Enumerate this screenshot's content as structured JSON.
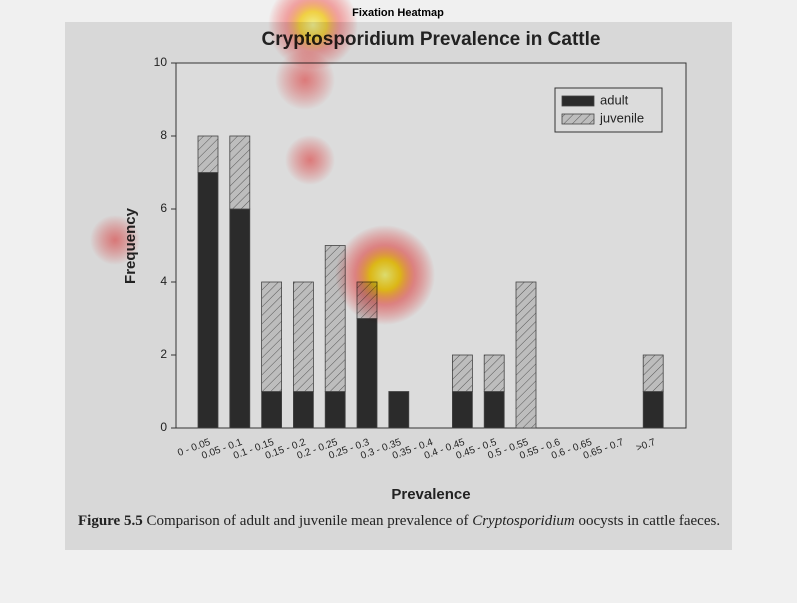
{
  "page_title": "Fixation Heatmap",
  "caption": {
    "label": "Figure 5.5",
    "text_before": "Comparison of adult and juvenile mean prevalence of",
    "text_italic": "Cryptosporidium",
    "text_after": "oocysts in cattle faeces."
  },
  "chart_data": {
    "type": "stacked-bar",
    "title": "Cryptosporidium Prevalence in Cattle",
    "x_label": "Prevalence",
    "y_label": "Frequency",
    "categories": [
      "0 - 0.05",
      "0.05 - 0.1",
      "0.1 - 0.15",
      "0.15 - 0.2",
      "0.2 - 0.25",
      "0.25 - 0.3",
      "0.3 - 0.35",
      "0.35 - 0.4",
      "0.4 - 0.45",
      "0.45 - 0.5",
      "0.5 - 0.55",
      "0.55 - 0.6",
      "0.6 - 0.65",
      "0.65 - 0.7",
      ">0.7"
    ],
    "series": [
      {
        "name": "adult",
        "color": "#2b2b2b",
        "values": [
          7,
          6,
          1,
          1,
          1,
          3,
          1,
          0,
          1,
          1,
          0,
          0,
          0,
          0,
          1
        ]
      },
      {
        "name": "juvenile",
        "color": "#bdbdbd",
        "values": [
          1,
          2,
          3,
          3,
          4,
          1,
          0,
          0,
          1,
          1,
          4,
          0,
          0,
          0,
          1
        ]
      }
    ],
    "ylim": [
      0,
      10
    ],
    "yticks": [
      0,
      2,
      4,
      6,
      8,
      10
    ],
    "legend": "top-right"
  }
}
